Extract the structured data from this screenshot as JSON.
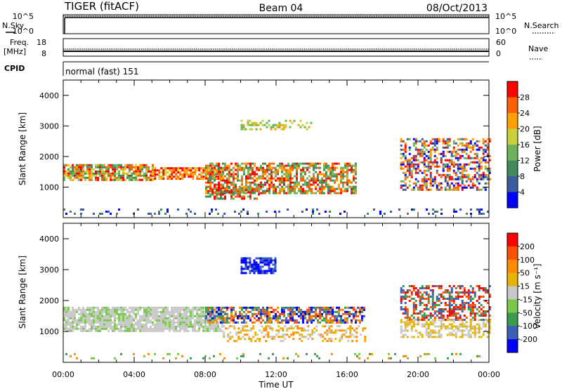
{
  "header": {
    "left": "TIGER (fitACF)",
    "center": "Beam 04",
    "right": "08/Oct/2013"
  },
  "top_panels": {
    "nsky": {
      "label": "N.Sky",
      "right_label": "N.Search",
      "left_ticks": [
        "10^5",
        "10^0"
      ],
      "right_ticks": [
        "10^5",
        "10^0"
      ]
    },
    "freq": {
      "label_line1": "Freq.",
      "label_line2": "[MHz]",
      "right_label": "Nave",
      "left_ticks": [
        "18",
        "8"
      ],
      "right_ticks": [
        "60",
        "0"
      ]
    },
    "cpid": {
      "label": "CPID",
      "text": "normal (fast) 151"
    }
  },
  "colors": {
    "power_scale": [
      "#0000ff",
      "#3c5aa0",
      "#3f8c5a",
      "#6cb45c",
      "#c8d238",
      "#ffa000",
      "#ff6000",
      "#ff0000"
    ],
    "velocity_scale": [
      "#0000ff",
      "#3a5fb4",
      "#3c9b50",
      "#7ac84a",
      "#c8c8c8",
      "#e6b400",
      "#ff8c00",
      "#ff5000",
      "#ff0000"
    ]
  },
  "chart_data": [
    {
      "type": "heatmap",
      "ylabel": "Slant Range [km]",
      "ylim": [
        0,
        4500
      ],
      "yticks": [
        "1000",
        "2000",
        "3000",
        "4000"
      ],
      "xticks": [
        "00:00",
        "04:00",
        "08:00",
        "12:00",
        "16:00",
        "20:00",
        "00:00"
      ],
      "colorbar": {
        "label": "Power [dB]",
        "ticks": [
          "28",
          "24",
          "20",
          "16",
          "12",
          "8",
          "4"
        ]
      }
    },
    {
      "type": "heatmap",
      "ylabel": "Slant Range [km]",
      "xlabel": "Time UT",
      "ylim": [
        0,
        4500
      ],
      "yticks": [
        "1000",
        "2000",
        "3000",
        "4000"
      ],
      "xticks": [
        "00:00",
        "04:00",
        "08:00",
        "12:00",
        "16:00",
        "20:00",
        "00:00"
      ],
      "colorbar": {
        "label": "Velocity [m s⁻¹]",
        "ticks": [
          "200",
          "100",
          "50",
          "15",
          "-15",
          "-50",
          "-100",
          "-200"
        ]
      }
    }
  ]
}
